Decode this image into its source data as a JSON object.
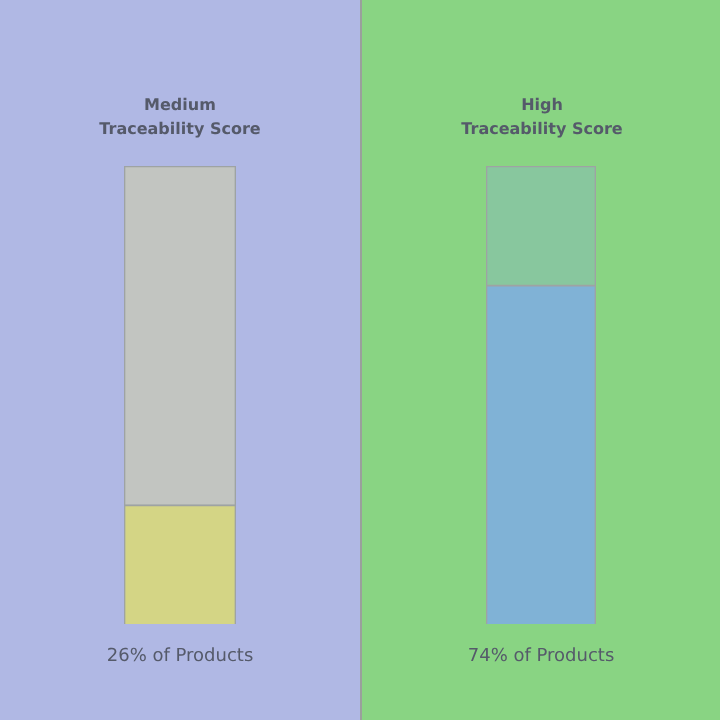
{
  "chart_data": [
    {
      "type": "bar",
      "title": "Medium\nTraceability Score",
      "categories": [
        null
      ],
      "stacked": true,
      "ylim": [
        0,
        100
      ],
      "tick_labels": false,
      "series": [
        {
          "color": "#d4d585",
          "values": [
            26
          ],
          "value_labels": [
            "26% of Products"
          ]
        },
        {
          "color": "#c2c5c1",
          "values": [
            74
          ]
        }
      ]
    },
    {
      "type": "bar",
      "title": "High\nTraceability Score",
      "categories": [
        null
      ],
      "stacked": true,
      "ylim": [
        0,
        100
      ],
      "tick_labels": false,
      "series": [
        {
          "color": "#80b2d6",
          "values": [
            74
          ],
          "value_labels": [
            "74% of Products"
          ]
        },
        {
          "color": "#88c79e",
          "values": [
            26
          ]
        }
      ]
    }
  ]
}
